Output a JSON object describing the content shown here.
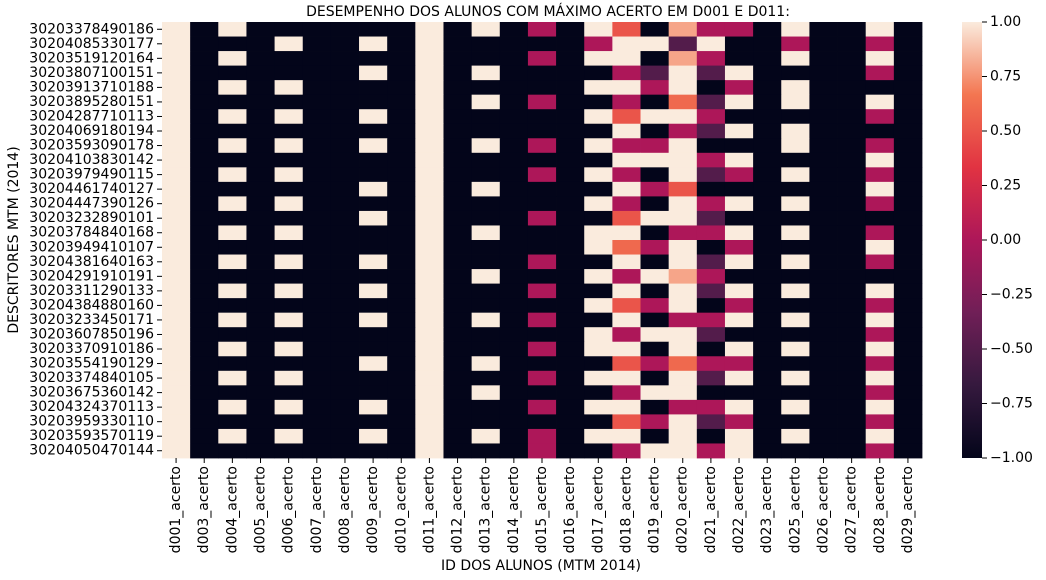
{
  "chart_data": {
    "type": "heatmap",
    "title": "DESEMPENHO DOS ALUNOS COM MÁXIMO ACERTO EM D001 E D011:",
    "x_label": "ID DOS ALUNOS (MTM 2014)",
    "y_label": "DESCRITORES MTM (2014)",
    "x_categories": [
      "d001_acerto",
      "d003_acerto",
      "d004_acerto",
      "d005_acerto",
      "d006_acerto",
      "d007_acerto",
      "d008_acerto",
      "d009_acerto",
      "d010_acerto",
      "d011_acerto",
      "d012_acerto",
      "d013_acerto",
      "d014_acerto",
      "d015_acerto",
      "d016_acerto",
      "d017_acerto",
      "d018_acerto",
      "d019_acerto",
      "d020_acerto",
      "d021_acerto",
      "d022_acerto",
      "d023_acerto",
      "d025_acerto",
      "d026_acerto",
      "d027_acerto",
      "d028_acerto",
      "d029_acerto"
    ],
    "y_categories": [
      "30203378490186",
      "30204085330177",
      "30203519120164",
      "30203807100151",
      "30203913710188",
      "30203895280151",
      "30204287710113",
      "30204069180194",
      "30203593090178",
      "30204103830142",
      "30203979490115",
      "30204461740127",
      "30204447390126",
      "30203232890101",
      "30203784840168",
      "30203949410107",
      "30204381640163",
      "30204291910191",
      "30203311290133",
      "30204384880160",
      "30203233450171",
      "30203607850196",
      "30203370910186",
      "30203554190129",
      "30203374840105",
      "30203675360142",
      "30204324370113",
      "30203959330110",
      "30203593570119",
      "30204050470144"
    ],
    "values": [
      [
        1,
        -1,
        1,
        -1,
        -1,
        -1,
        -1,
        -1,
        -1,
        1,
        -1,
        1,
        -1,
        0,
        -1,
        1,
        0.5,
        -1,
        0.8,
        0,
        0,
        -1,
        1,
        -1,
        -1,
        1,
        -1
      ],
      [
        1,
        -1,
        -1,
        -1,
        1,
        -1,
        -1,
        1,
        -1,
        1,
        -1,
        -1,
        -1,
        -1,
        -1,
        0,
        1,
        1,
        -0.5,
        1,
        -1,
        -1,
        0,
        -1,
        -1,
        0,
        -1
      ],
      [
        1,
        -1,
        1,
        -1,
        -1,
        -1,
        -1,
        -1,
        -1,
        1,
        -1,
        -1,
        -1,
        0,
        -1,
        1,
        1,
        -1,
        0.8,
        0,
        -1,
        -1,
        1,
        -1,
        -1,
        1,
        -1
      ],
      [
        1,
        -1,
        -1,
        -1,
        -1,
        -1,
        -1,
        1,
        -1,
        1,
        -1,
        1,
        -1,
        -1,
        -1,
        -1,
        0,
        -0.5,
        1,
        -0.5,
        1,
        -1,
        -1,
        -1,
        -1,
        0,
        -1
      ],
      [
        1,
        -1,
        1,
        -1,
        1,
        -1,
        -1,
        -1,
        -1,
        1,
        -1,
        -1,
        -1,
        -1,
        -1,
        1,
        1,
        0,
        1,
        -1,
        0,
        -1,
        1,
        -1,
        -1,
        -1,
        -1
      ],
      [
        1,
        -1,
        -1,
        -1,
        -1,
        -1,
        -1,
        -1,
        -1,
        1,
        -1,
        1,
        -1,
        0,
        -1,
        -1,
        0,
        -1,
        0.6,
        -0.5,
        1,
        -1,
        1,
        -1,
        -1,
        1,
        -1
      ],
      [
        1,
        -1,
        1,
        -1,
        1,
        -1,
        -1,
        1,
        -1,
        1,
        -1,
        -1,
        -1,
        -1,
        -1,
        1,
        0.5,
        1,
        1,
        0,
        -1,
        -1,
        -1,
        -1,
        -1,
        0,
        -1
      ],
      [
        1,
        -1,
        -1,
        -1,
        -1,
        -1,
        -1,
        -1,
        -1,
        1,
        -1,
        -1,
        -1,
        -1,
        -1,
        -1,
        1,
        -1,
        0,
        -0.5,
        1,
        -1,
        1,
        -1,
        -1,
        -1,
        -1
      ],
      [
        1,
        -1,
        1,
        -1,
        1,
        -1,
        -1,
        1,
        -1,
        1,
        -1,
        1,
        -1,
        0,
        -1,
        1,
        0,
        0,
        1,
        -1,
        -1,
        -1,
        1,
        -1,
        -1,
        0,
        -1
      ],
      [
        1,
        -1,
        -1,
        -1,
        -1,
        -1,
        -1,
        -1,
        -1,
        1,
        -1,
        -1,
        -1,
        -1,
        -1,
        -1,
        1,
        1,
        1,
        0,
        1,
        -1,
        -1,
        -1,
        -1,
        1,
        -1
      ],
      [
        1,
        -1,
        1,
        -1,
        1,
        -1,
        -1,
        -1,
        -1,
        1,
        -1,
        -1,
        -1,
        0,
        -1,
        1,
        0,
        -1,
        1,
        -0.5,
        0,
        -1,
        1,
        -1,
        -1,
        0,
        -1
      ],
      [
        1,
        -1,
        -1,
        -1,
        -1,
        -1,
        -1,
        1,
        -1,
        1,
        -1,
        1,
        -1,
        -1,
        -1,
        -1,
        1,
        0,
        0.5,
        -1,
        -1,
        -1,
        -1,
        -1,
        -1,
        1,
        -1
      ],
      [
        1,
        -1,
        1,
        -1,
        1,
        -1,
        -1,
        -1,
        -1,
        1,
        -1,
        -1,
        -1,
        -1,
        -1,
        1,
        0,
        -1,
        1,
        0,
        1,
        -1,
        1,
        -1,
        -1,
        0,
        -1
      ],
      [
        1,
        -1,
        -1,
        -1,
        -1,
        -1,
        -1,
        1,
        -1,
        1,
        -1,
        -1,
        -1,
        0,
        -1,
        -1,
        0.5,
        1,
        1,
        -0.5,
        -1,
        -1,
        -1,
        -1,
        -1,
        -1,
        -1
      ],
      [
        1,
        -1,
        1,
        -1,
        1,
        -1,
        -1,
        -1,
        -1,
        1,
        -1,
        1,
        -1,
        -1,
        -1,
        1,
        1,
        -1,
        0,
        0,
        1,
        -1,
        1,
        -1,
        -1,
        0,
        -1
      ],
      [
        1,
        -1,
        -1,
        -1,
        -1,
        -1,
        -1,
        -1,
        -1,
        1,
        -1,
        -1,
        -1,
        -1,
        -1,
        1,
        0.6,
        0,
        1,
        -1,
        0,
        -1,
        -1,
        -1,
        -1,
        1,
        -1
      ],
      [
        1,
        -1,
        1,
        -1,
        1,
        -1,
        -1,
        1,
        -1,
        1,
        -1,
        -1,
        -1,
        0,
        -1,
        -1,
        1,
        -1,
        1,
        -0.5,
        1,
        -1,
        1,
        -1,
        -1,
        0,
        -1
      ],
      [
        1,
        -1,
        -1,
        -1,
        -1,
        -1,
        -1,
        -1,
        -1,
        1,
        -1,
        1,
        -1,
        -1,
        -1,
        1,
        0,
        1,
        0.8,
        0,
        -1,
        -1,
        -1,
        -1,
        -1,
        -1,
        -1
      ],
      [
        1,
        -1,
        1,
        -1,
        1,
        -1,
        -1,
        1,
        -1,
        1,
        -1,
        -1,
        -1,
        0,
        -1,
        -1,
        1,
        -1,
        1,
        -0.5,
        1,
        -1,
        1,
        -1,
        -1,
        1,
        -1
      ],
      [
        1,
        -1,
        -1,
        -1,
        -1,
        -1,
        -1,
        -1,
        -1,
        1,
        -1,
        -1,
        -1,
        -1,
        -1,
        1,
        0.5,
        0,
        1,
        -1,
        0,
        -1,
        -1,
        -1,
        -1,
        0,
        -1
      ],
      [
        1,
        -1,
        1,
        -1,
        1,
        -1,
        -1,
        1,
        -1,
        1,
        -1,
        1,
        -1,
        0,
        -1,
        -1,
        1,
        -1,
        0,
        0,
        1,
        -1,
        1,
        -1,
        -1,
        1,
        -1
      ],
      [
        1,
        -1,
        -1,
        -1,
        -1,
        -1,
        -1,
        -1,
        -1,
        1,
        -1,
        -1,
        -1,
        -1,
        -1,
        1,
        0,
        1,
        1,
        -0.5,
        -1,
        -1,
        -1,
        -1,
        -1,
        0,
        -1
      ],
      [
        1,
        -1,
        1,
        -1,
        1,
        -1,
        -1,
        -1,
        -1,
        1,
        -1,
        -1,
        -1,
        0,
        -1,
        1,
        1,
        -1,
        1,
        -1,
        1,
        -1,
        1,
        -1,
        -1,
        1,
        -1
      ],
      [
        1,
        -1,
        -1,
        -1,
        -1,
        -1,
        -1,
        1,
        -1,
        1,
        -1,
        1,
        -1,
        -1,
        -1,
        -1,
        0.5,
        0,
        0.6,
        0,
        0,
        -1,
        -1,
        -1,
        -1,
        0,
        -1
      ],
      [
        1,
        -1,
        1,
        -1,
        1,
        -1,
        -1,
        -1,
        -1,
        1,
        -1,
        -1,
        -1,
        0,
        -1,
        1,
        1,
        -1,
        1,
        -0.5,
        1,
        -1,
        1,
        -1,
        -1,
        1,
        -1
      ],
      [
        1,
        -1,
        -1,
        -1,
        -1,
        -1,
        -1,
        -1,
        -1,
        1,
        -1,
        1,
        -1,
        -1,
        -1,
        -1,
        0,
        1,
        1,
        -1,
        -1,
        -1,
        -1,
        -1,
        -1,
        0,
        -1
      ],
      [
        1,
        -1,
        1,
        -1,
        1,
        -1,
        -1,
        1,
        -1,
        1,
        -1,
        -1,
        -1,
        0,
        -1,
        1,
        1,
        -1,
        0,
        0,
        1,
        -1,
        1,
        -1,
        -1,
        1,
        -1
      ],
      [
        1,
        -1,
        -1,
        -1,
        -1,
        -1,
        -1,
        -1,
        -1,
        1,
        -1,
        -1,
        -1,
        -1,
        -1,
        -1,
        0.5,
        0,
        1,
        -0.5,
        0,
        -1,
        -1,
        -1,
        -1,
        0,
        -1
      ],
      [
        1,
        -1,
        1,
        -1,
        1,
        -1,
        -1,
        1,
        -1,
        1,
        -1,
        1,
        -1,
        0,
        -1,
        1,
        1,
        -1,
        1,
        -1,
        1,
        -1,
        1,
        -1,
        -1,
        1,
        -1
      ],
      [
        1,
        -1,
        -1,
        -1,
        -1,
        -1,
        -1,
        -1,
        -1,
        1,
        -1,
        -1,
        -1,
        0,
        -1,
        -1,
        0,
        1,
        1,
        0,
        1,
        -1,
        -1,
        -1,
        -1,
        0,
        -1
      ]
    ],
    "colormap": [
      "#03051a",
      "#35193e",
      "#701f57",
      "#ad1759",
      "#e13342",
      "#f37651",
      "#faebdd"
    ],
    "clim": [
      -1,
      1
    ],
    "cticks": [
      {
        "value": -1,
        "label": "−1.00"
      },
      {
        "value": -0.75,
        "label": "−0.75"
      },
      {
        "value": -0.5,
        "label": "−0.50"
      },
      {
        "value": -0.25,
        "label": "−0.25"
      },
      {
        "value": 0,
        "label": "0.00"
      },
      {
        "value": 0.25,
        "label": "0.25"
      },
      {
        "value": 0.5,
        "label": "0.50"
      },
      {
        "value": 0.75,
        "label": "0.75"
      },
      {
        "value": 1,
        "label": "1.00"
      }
    ]
  }
}
